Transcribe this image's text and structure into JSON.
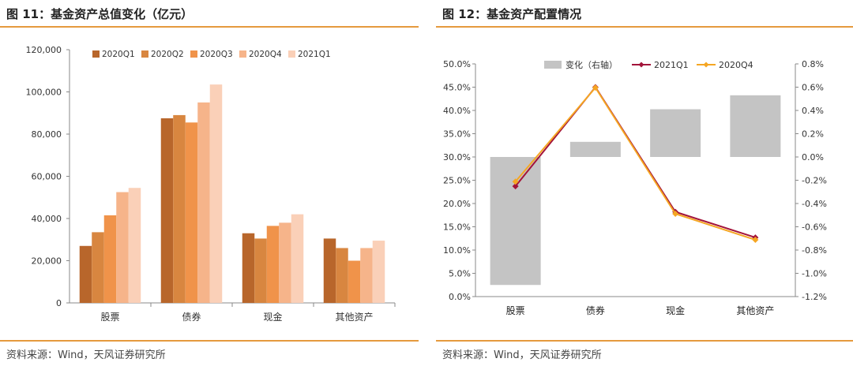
{
  "left": {
    "title": "图 11：基金资产总值变化（亿元）",
    "source": "资料来源：Wind，天风证券研究所"
  },
  "right": {
    "title": "图 12：基金资产配置情况",
    "source": "资料来源：Wind，天风证券研究所"
  },
  "chart_data": [
    {
      "type": "bar",
      "title": "",
      "categories": [
        "股票",
        "债券",
        "现金",
        "其他资产"
      ],
      "ylim": [
        0,
        120000
      ],
      "yticks": [
        0,
        20000,
        40000,
        60000,
        80000,
        100000,
        120000
      ],
      "ytick_labels": [
        "0",
        "20,000",
        "40,000",
        "60,000",
        "80,000",
        "100,000",
        "120,000"
      ],
      "legend_position": "top",
      "grid": false,
      "series": [
        {
          "name": "2020Q1",
          "color": "#b8662b",
          "values": [
            27000,
            87500,
            33000,
            30500
          ]
        },
        {
          "name": "2020Q2",
          "color": "#d88640",
          "values": [
            33500,
            89000,
            30500,
            26000
          ]
        },
        {
          "name": "2020Q3",
          "color": "#f0934a",
          "values": [
            41500,
            85500,
            36500,
            20000
          ]
        },
        {
          "name": "2020Q4",
          "color": "#f6b48a",
          "values": [
            52500,
            95000,
            38000,
            26000
          ]
        },
        {
          "name": "2021Q1",
          "color": "#fad0b8",
          "values": [
            54500,
            103500,
            42000,
            29500
          ]
        }
      ]
    },
    {
      "type": "line",
      "title": "",
      "categories": [
        "股票",
        "债券",
        "现金",
        "其他资产"
      ],
      "ylim": [
        0,
        50
      ],
      "yticks": [
        0,
        5,
        10,
        15,
        20,
        25,
        30,
        35,
        40,
        45,
        50
      ],
      "ytick_labels": [
        "0.0%",
        "5.0%",
        "10.0%",
        "15.0%",
        "20.0%",
        "25.0%",
        "30.0%",
        "35.0%",
        "40.0%",
        "45.0%",
        "50.0%"
      ],
      "y2lim": [
        -1.2,
        0.8
      ],
      "y2ticks": [
        -1.2,
        -1.0,
        -0.8,
        -0.6,
        -0.4,
        -0.2,
        0.0,
        0.2,
        0.4,
        0.6,
        0.8
      ],
      "y2tick_labels": [
        "-1.2%",
        "-1.0%",
        "-0.8%",
        "-0.6%",
        "-0.4%",
        "-0.2%",
        "0.0%",
        "0.2%",
        "0.4%",
        "0.6%",
        "0.8%"
      ],
      "legend_position": "top",
      "grid": false,
      "bars": {
        "name": "变化（右轴）",
        "color": "#c4c4c4",
        "values": [
          -1.1,
          0.13,
          0.41,
          0.53
        ]
      },
      "series": [
        {
          "name": "2021Q1",
          "color": "#a3143a",
          "values": [
            23.7,
            45.0,
            18.2,
            12.7
          ]
        },
        {
          "name": "2020Q4",
          "color": "#f5a623",
          "values": [
            24.7,
            44.9,
            17.8,
            12.2
          ]
        }
      ]
    }
  ]
}
